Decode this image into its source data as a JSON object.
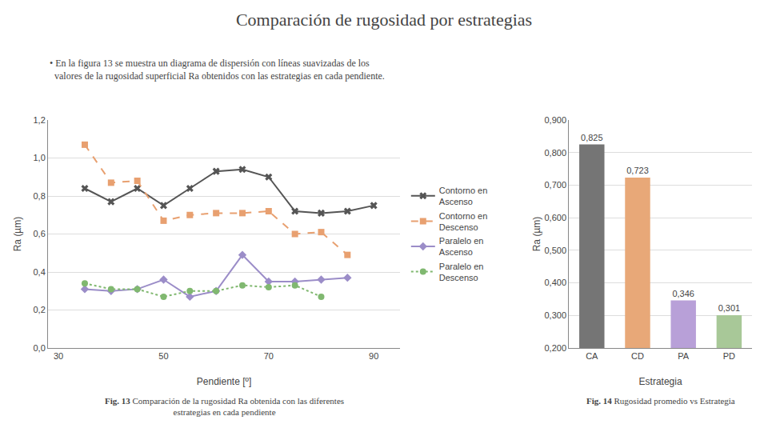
{
  "chart_data": [
    {
      "type": "line",
      "title": "Comparación de rugosidad por estrategias",
      "subtitle": "• En la figura 13 se muestra un diagrama de dispersión con líneas suavizadas de los\n  valores de la rugosidad superficial Ra obtenidos con las estrategias en cada pendiente.",
      "caption_label": "Fig. 13",
      "caption": "Comparación de la rugosidad Ra obtenida con las diferentes\nestrategias en cada pendiente",
      "x_label": "Pendiente [º]",
      "y_label": "Ra (µm)",
      "x": [
        35,
        40,
        45,
        50,
        55,
        60,
        65,
        70,
        75,
        80,
        85,
        90
      ],
      "series": [
        {
          "name": "Contorno en\nAscenso",
          "color": "#555555",
          "marker": "x",
          "line_style": "solid",
          "values": [
            0.84,
            0.77,
            0.84,
            0.75,
            0.84,
            0.93,
            0.94,
            0.9,
            0.72,
            0.71,
            0.72,
            0.75
          ]
        },
        {
          "name": "Contorno en\nDescenso",
          "color": "#E8A070",
          "marker": "square",
          "line_style": "dash",
          "values": [
            1.07,
            0.87,
            0.88,
            0.67,
            0.7,
            0.71,
            0.71,
            0.72,
            0.6,
            0.61,
            0.49,
            null
          ]
        },
        {
          "name": "Paralelo en\nAscenso",
          "color": "#9B8DC8",
          "marker": "diamond",
          "line_style": "solid",
          "values": [
            0.31,
            0.3,
            0.31,
            0.36,
            0.27,
            0.3,
            0.49,
            0.35,
            0.35,
            0.36,
            0.37,
            null
          ]
        },
        {
          "name": "Paralelo en\nDescenso",
          "color": "#80B870",
          "marker": "circle",
          "line_style": "dot",
          "values": [
            0.34,
            0.31,
            0.31,
            0.27,
            0.3,
            0.3,
            0.33,
            0.32,
            0.33,
            0.27,
            null,
            null
          ]
        }
      ],
      "xlim": [
        28,
        95
      ],
      "xticks": [
        30,
        50,
        70,
        90
      ],
      "ylim": [
        0.0,
        1.2
      ],
      "yticks": [
        {
          "value": 0.0,
          "label": "0,0"
        },
        {
          "value": 0.2,
          "label": "0,2"
        },
        {
          "value": 0.4,
          "label": "0,4"
        },
        {
          "value": 0.6,
          "label": "0,6"
        },
        {
          "value": 0.8,
          "label": "0,8"
        },
        {
          "value": 1.0,
          "label": "1,0"
        },
        {
          "value": 1.2,
          "label": "1,2"
        }
      ],
      "grid": "y",
      "legend": "right"
    },
    {
      "type": "bar",
      "caption_label": "Fig. 14",
      "caption": "Rugosidad promedio vs Estrategia",
      "x_label": "Estrategia",
      "y_label": "Ra (µm)",
      "categories": [
        "CA",
        "CD",
        "PA",
        "PD"
      ],
      "values": [
        0.825,
        0.723,
        0.346,
        0.301
      ],
      "value_labels": [
        "0,825",
        "0,723",
        "0,346",
        "0,301"
      ],
      "colors": [
        "#757575",
        "#E8A878",
        "#B8A0D8",
        "#A8C898"
      ],
      "data_labels": true,
      "ylim": [
        0.2,
        0.9
      ],
      "yticks": [
        {
          "value": 0.2,
          "label": "0,200"
        },
        {
          "value": 0.3,
          "label": "0,300"
        },
        {
          "value": 0.4,
          "label": "0,400"
        },
        {
          "value": 0.5,
          "label": "0,500"
        },
        {
          "value": 0.6,
          "label": "0,600"
        },
        {
          "value": 0.7,
          "label": "0,700"
        },
        {
          "value": 0.8,
          "label": "0,800"
        },
        {
          "value": 0.9,
          "label": "0,900"
        }
      ],
      "grid": "y"
    }
  ]
}
